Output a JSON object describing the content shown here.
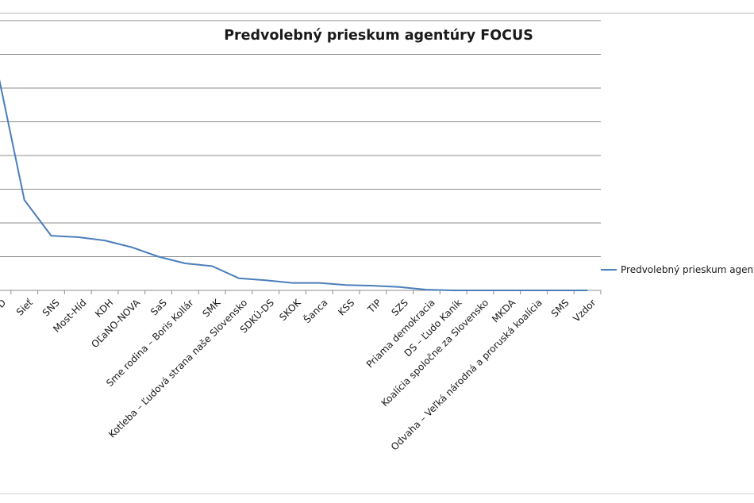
{
  "chart_data": {
    "type": "line",
    "title": "Predvolebný prieskum agentúry FOCUS",
    "xlabel": "",
    "ylabel": "",
    "ylim": [
      0,
      40
    ],
    "grid": true,
    "legend": {
      "position": "right",
      "label": "Predvolebný prieskum agentúry FOCUS"
    },
    "series_color": "#4a7ebb",
    "categories": [
      "Smer-SD",
      "Sieť",
      "SNS",
      "Most-Híd",
      "KDH",
      "OĽaNO-NOVA",
      "SaS",
      "Sme rodina – Boris Kollár",
      "SMK",
      "Kotleba – Ľudová strana naše Slovensko",
      "SDKÚ-DS",
      "SKOK",
      "Šanca",
      "KSS",
      "TIP",
      "SZS",
      "Priama demokracia",
      "DS – Ľudo Kaník",
      "Koalícia spoločne za Slovensko",
      "MKDA",
      "Odvaha – Veľká národná a proruská koalícia",
      "SMS",
      "Vzdor"
    ],
    "values": [
      32.5,
      13.4,
      8.1,
      7.9,
      7.4,
      6.4,
      5.0,
      4.0,
      3.6,
      1.8,
      1.5,
      1.1,
      1.1,
      0.8,
      0.7,
      0.5,
      0.1,
      0.0,
      0.0,
      0.0,
      0.0,
      0.0,
      0.0
    ]
  }
}
